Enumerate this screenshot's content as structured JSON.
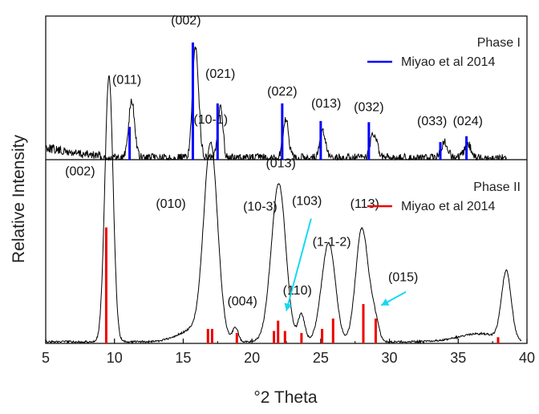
{
  "chart_data": {
    "type": "line",
    "xlabel": "°2 Theta",
    "ylabel": "Relative Intensity",
    "xlim": [
      5,
      40
    ],
    "x_ticks": [
      "5",
      "10",
      "15",
      "20",
      "25",
      "30",
      "35",
      "40"
    ],
    "grid": false,
    "panels": [
      {
        "legend_title": "Phase I",
        "legend_label": "Miyao et al 2014",
        "legend_position": "top-right",
        "measured_color": "#000000",
        "reference_color": "#0000ff",
        "measured_peaks": [
          {
            "x": 11.25,
            "height": 0.48,
            "width": 0.22
          },
          {
            "x": 15.9,
            "height": 0.95,
            "width": 0.22
          },
          {
            "x": 17.7,
            "height": 0.46,
            "width": 0.18
          },
          {
            "x": 22.45,
            "height": 0.33,
            "width": 0.2
          },
          {
            "x": 25.15,
            "height": 0.22,
            "width": 0.2
          },
          {
            "x": 28.85,
            "height": 0.2,
            "width": 0.25
          },
          {
            "x": 34.0,
            "height": 0.13,
            "width": 0.25
          },
          {
            "x": 35.7,
            "height": 0.12,
            "width": 0.25
          }
        ],
        "reference_lines": [
          {
            "x": 11.1,
            "height": 0.28
          },
          {
            "x": 15.7,
            "height": 1.0
          },
          {
            "x": 17.5,
            "height": 0.48
          },
          {
            "x": 22.2,
            "height": 0.48
          },
          {
            "x": 25.0,
            "height": 0.33
          },
          {
            "x": 28.5,
            "height": 0.32
          },
          {
            "x": 33.7,
            "height": 0.15
          },
          {
            "x": 35.6,
            "height": 0.2
          }
        ],
        "annotations": [
          {
            "text": "(011)",
            "x": 10.9,
            "y": 0.64
          },
          {
            "text": "(002)",
            "x": 15.2,
            "y": 1.14
          },
          {
            "text": "(021)",
            "x": 17.7,
            "y": 0.69
          },
          {
            "text": "(022)",
            "x": 22.2,
            "y": 0.54
          },
          {
            "text": "(013)",
            "x": 25.4,
            "y": 0.44
          },
          {
            "text": "(032)",
            "x": 28.5,
            "y": 0.41
          },
          {
            "text": "(033)",
            "x": 33.1,
            "y": 0.29
          },
          {
            "text": "(024)",
            "x": 35.7,
            "y": 0.29
          }
        ]
      },
      {
        "legend_title": "Phase II",
        "legend_label": "Miyao et al 2014",
        "legend_position": "top-right",
        "measured_color": "#000000",
        "reference_color": "#ee0000",
        "measured_peaks": [
          {
            "x": 9.6,
            "height": 0.98,
            "width": 0.3
          },
          {
            "x": 17.0,
            "height": 0.7,
            "width": 0.5
          },
          {
            "x": 18.8,
            "height": 0.05,
            "width": 0.2
          },
          {
            "x": 21.5,
            "height": 0.1,
            "width": 0.5
          },
          {
            "x": 22.0,
            "height": 0.52,
            "width": 0.5
          },
          {
            "x": 23.6,
            "height": 0.1,
            "width": 0.25
          },
          {
            "x": 25.5,
            "height": 0.3,
            "width": 0.5
          },
          {
            "x": 25.8,
            "height": 0.08,
            "width": 0.4
          },
          {
            "x": 28.0,
            "height": 0.42,
            "width": 0.45
          },
          {
            "x": 28.9,
            "height": 0.08,
            "width": 0.3
          },
          {
            "x": 38.5,
            "height": 0.25,
            "width": 0.35
          },
          {
            "x": 16.0,
            "height": 0.05,
            "width": 1.2
          },
          {
            "x": 36.5,
            "height": 0.03,
            "width": 1.5
          }
        ],
        "reference_lines": [
          {
            "x": 9.4,
            "height": 0.56
          },
          {
            "x": 16.8,
            "height": 0.07
          },
          {
            "x": 17.1,
            "height": 0.07
          },
          {
            "x": 18.9,
            "height": 0.05
          },
          {
            "x": 21.6,
            "height": 0.06
          },
          {
            "x": 21.9,
            "height": 0.11
          },
          {
            "x": 22.4,
            "height": 0.06
          },
          {
            "x": 23.6,
            "height": 0.05
          },
          {
            "x": 25.1,
            "height": 0.07
          },
          {
            "x": 25.9,
            "height": 0.12
          },
          {
            "x": 28.1,
            "height": 0.19
          },
          {
            "x": 29.0,
            "height": 0.12
          },
          {
            "x": 37.9,
            "height": 0.03
          }
        ],
        "annotations": [
          {
            "text": "(002)",
            "x": 7.5,
            "y": 0.62
          },
          {
            "text": "(10-1)",
            "x": 17.0,
            "y": 0.81
          },
          {
            "text": "(010)",
            "x": 14.1,
            "y": 0.5
          },
          {
            "text": "(013)",
            "x": 22.1,
            "y": 0.65
          },
          {
            "text": "(10-3)",
            "x": 20.6,
            "y": 0.49
          },
          {
            "text": "(103)",
            "x": 24.0,
            "y": 0.51
          },
          {
            "text": "(004)",
            "x": 19.3,
            "y": 0.14
          },
          {
            "text": "(110)",
            "x": 23.3,
            "y": 0.18
          },
          {
            "text": "(1-1-2)",
            "x": 25.8,
            "y": 0.36
          },
          {
            "text": "(113)",
            "x": 28.2,
            "y": 0.5
          },
          {
            "text": "(015)",
            "x": 31.0,
            "y": 0.23
          }
        ],
        "arrows": [
          {
            "from": [
              24.3,
              0.46
            ],
            "to": [
              22.5,
              0.12
            ]
          },
          {
            "from": [
              31.2,
              0.19
            ],
            "to": [
              29.4,
              0.14
            ]
          }
        ],
        "arrow_color": "#18d8f0"
      }
    ]
  }
}
